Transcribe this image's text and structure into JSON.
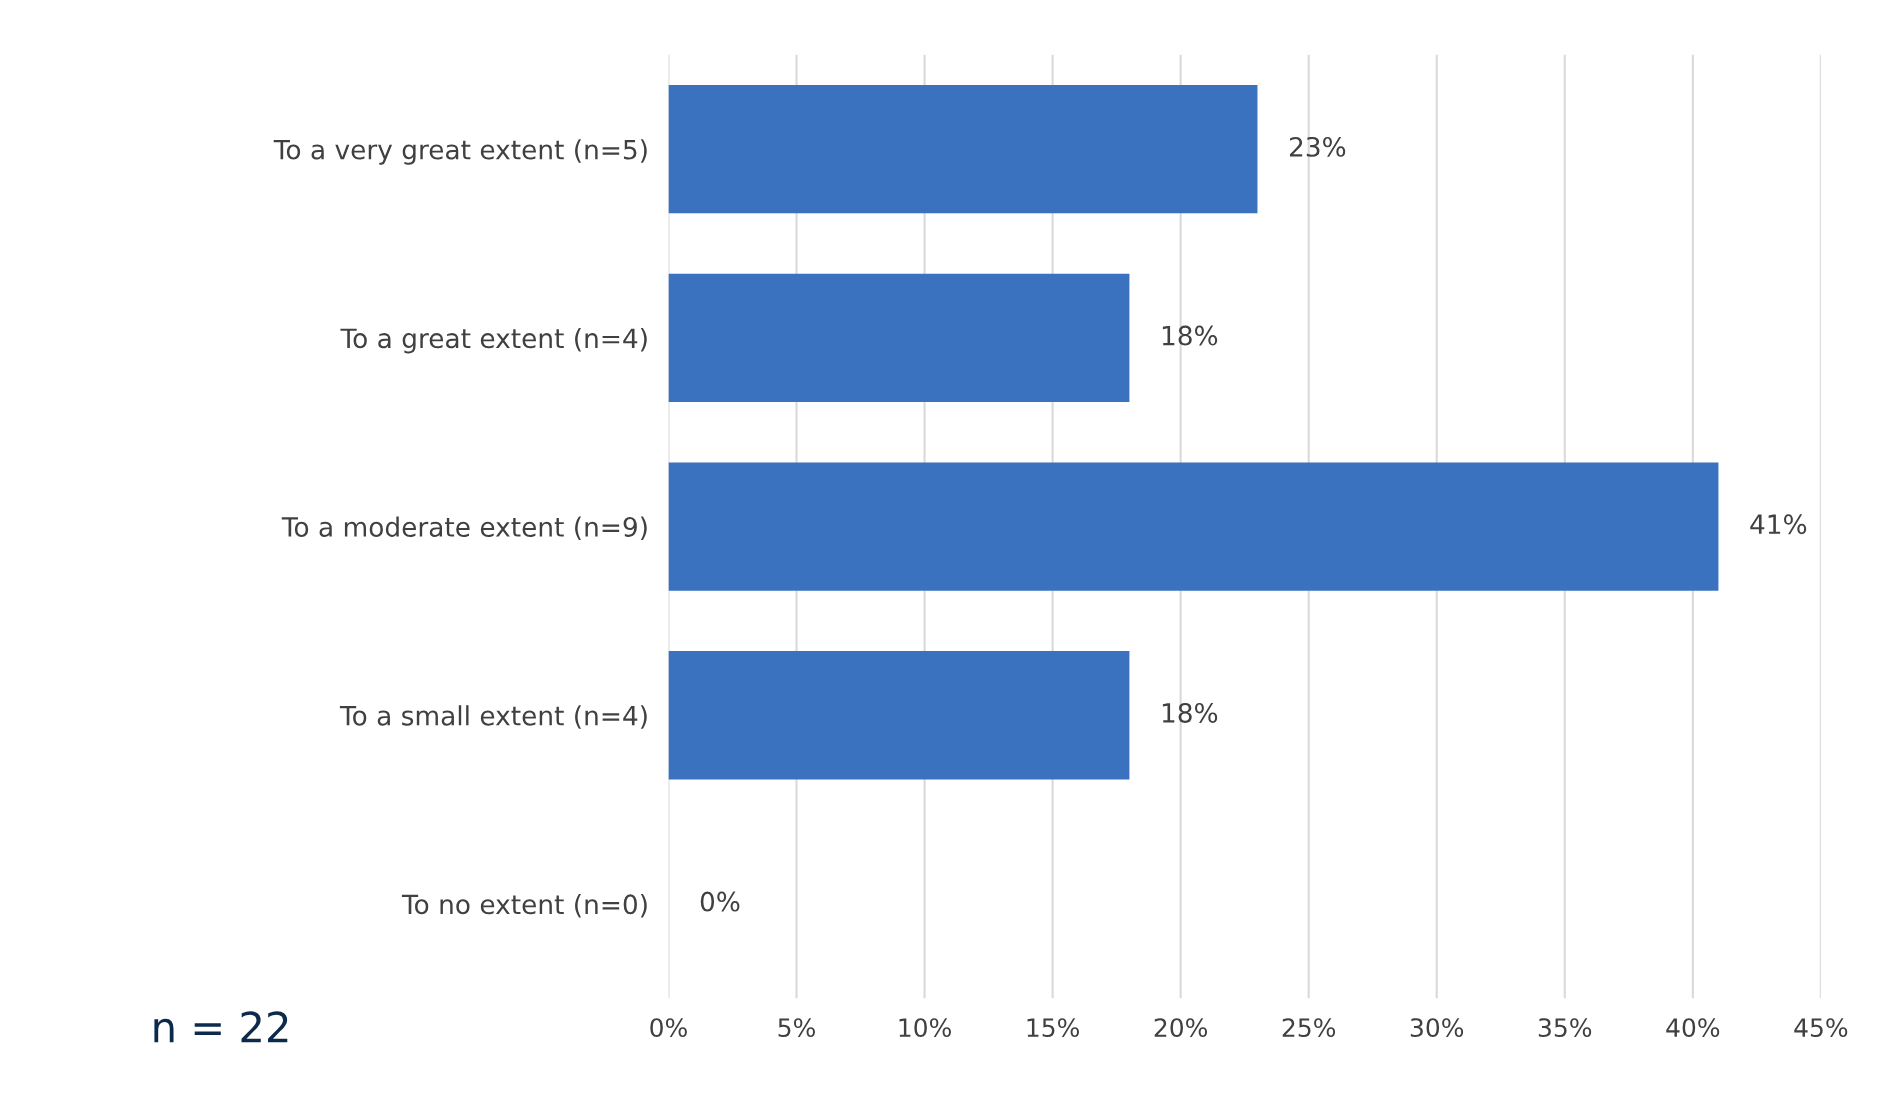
{
  "chart_data": {
    "type": "bar",
    "orientation": "horizontal",
    "categories": [
      "To a very great extent (n=5)",
      "To a great extent (n=4)",
      "To a moderate extent (n=9)",
      "To a small extent (n=4)",
      "To no extent (n=0)"
    ],
    "values": [
      23,
      18,
      41,
      18,
      0
    ],
    "value_labels": [
      "23%",
      "18%",
      "41%",
      "18%",
      "0%"
    ],
    "color": "#3a72c0",
    "xlim": [
      0,
      45
    ],
    "xticks": [
      {
        "value": 0,
        "label": "0%"
      },
      {
        "value": 5,
        "label": "5%"
      },
      {
        "value": 10,
        "label": "10%"
      },
      {
        "value": 15,
        "label": "15%"
      },
      {
        "value": 20,
        "label": "20%"
      },
      {
        "value": 25,
        "label": "25%"
      },
      {
        "value": 30,
        "label": "30%"
      },
      {
        "value": 35,
        "label": "35%"
      },
      {
        "value": 40,
        "label": "40%"
      },
      {
        "value": 45,
        "label": "45%"
      }
    ],
    "grid": "x",
    "annotations": [
      "n = 22"
    ]
  }
}
